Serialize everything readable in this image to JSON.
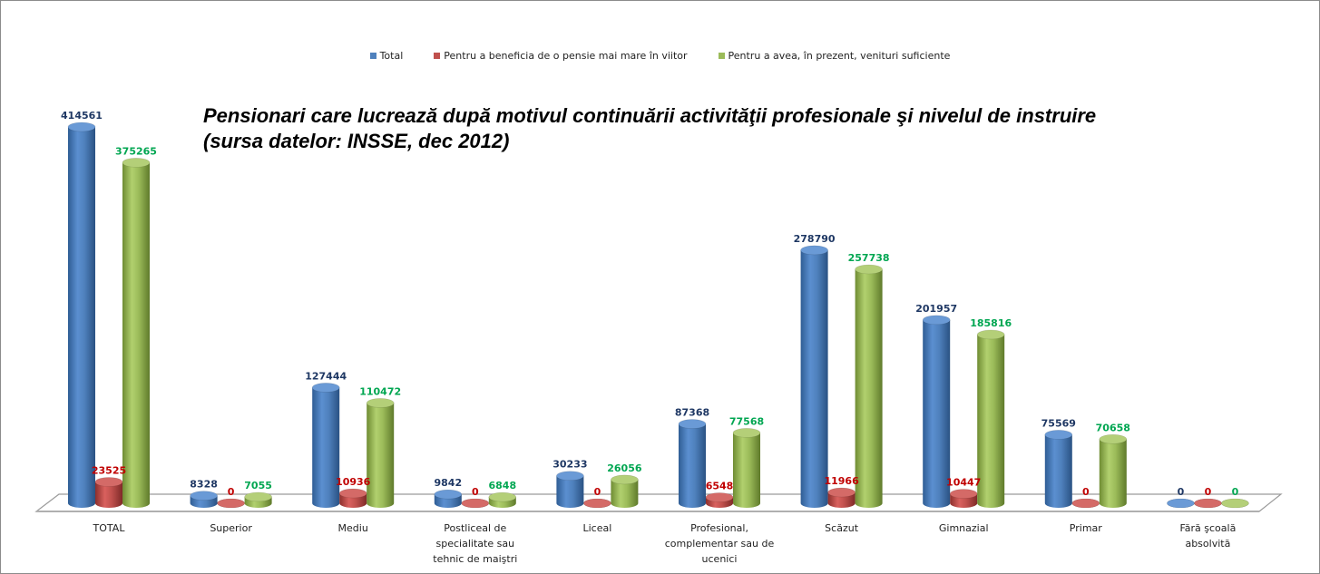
{
  "chart_data": {
    "type": "bar",
    "style": "3d-cylinder",
    "title": "Pensionari care lucrează după motivul continuării activităţii profesionale şi nivelul de instruire",
    "subtitle": "(sursa datelor: INSSE, dec 2012)",
    "xlabel": "",
    "ylabel": "",
    "ylim": [
      0,
      420000
    ],
    "grid": false,
    "legend_position": "top",
    "categories": [
      [
        "TOTAL"
      ],
      [
        "Superior"
      ],
      [
        "Mediu"
      ],
      [
        "Postliceal de",
        "specialitate sau",
        "tehnic de maiştri"
      ],
      [
        "Liceal"
      ],
      [
        "Profesional,",
        "complementar sau de",
        "ucenici"
      ],
      [
        "Scăzut"
      ],
      [
        "Gimnazial"
      ],
      [
        "Primar"
      ],
      [
        "Fără şcoală",
        "absolvită"
      ]
    ],
    "series": [
      {
        "name": "Total",
        "color": "#4f81bd",
        "label_color": "#1f3864",
        "values": [
          414561,
          8328,
          127444,
          9842,
          30233,
          87368,
          278790,
          201957,
          75569,
          0
        ]
      },
      {
        "name": "Pentru a beneficia de o pensie mai mare în viitor",
        "color": "#c0504d",
        "label_color": "#c00000",
        "values": [
          23525,
          0,
          10936,
          0,
          0,
          6548,
          11966,
          10447,
          0,
          0
        ]
      },
      {
        "name": "Pentru a avea, în prezent, venituri suficiente",
        "color": "#9bbb59",
        "label_color": "#00a651",
        "values": [
          375265,
          7055,
          110472,
          6848,
          26056,
          77568,
          257738,
          185816,
          70658,
          0
        ]
      }
    ]
  }
}
